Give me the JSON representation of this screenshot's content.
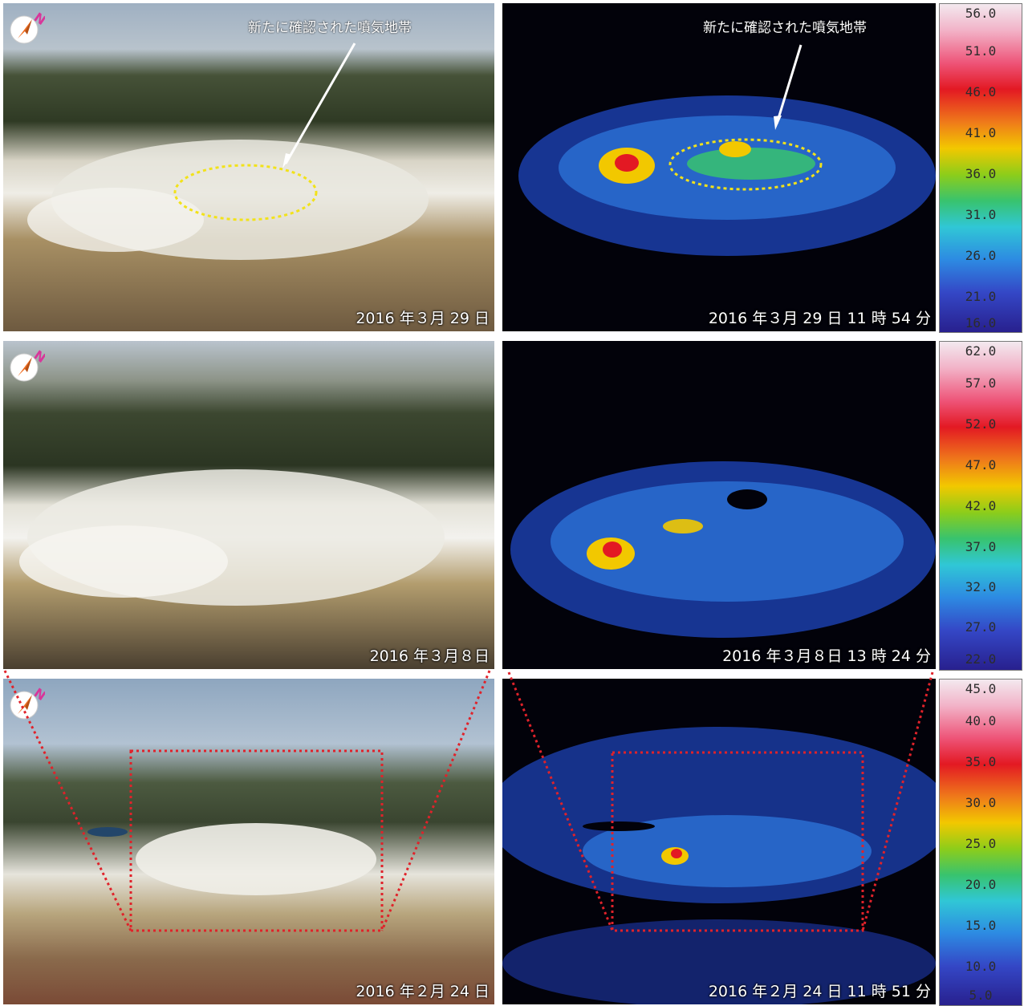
{
  "rows": [
    {
      "photo_caption": "2016 年３月 29 日",
      "thermal_caption": "2016 年３月 29 日 11 時 54 分",
      "photo_annotation": "新たに確認された噴気地帯",
      "thermal_annotation": "新たに確認された噴気地帯",
      "scale_ticks": [
        "56.0",
        "51.0",
        "46.0",
        "41.0",
        "36.0",
        "31.0",
        "26.0",
        "21.0",
        "16.0"
      ]
    },
    {
      "photo_caption": "2016 年３月８日",
      "thermal_caption": "2016 年３月８日 13 時 24 分",
      "scale_ticks": [
        "62.0",
        "57.0",
        "52.0",
        "47.0",
        "42.0",
        "37.0",
        "32.0",
        "27.0",
        "22.0"
      ]
    },
    {
      "photo_caption": "2016 年２月 24 日",
      "thermal_caption": "2016 年２月 24 日 11 時 51 分",
      "scale_ticks": [
        "45.0",
        "40.0",
        "35.0",
        "30.0",
        "25.0",
        "20.0",
        "15.0",
        "10.0",
        "5.0"
      ]
    }
  ],
  "compass_letter": "N",
  "colors": {
    "annotation_ellipse": "#f2e21a",
    "zoom_box": "#e0222a",
    "compass_arrow": "#f26a1a",
    "compass_letter": "#d8369a"
  }
}
